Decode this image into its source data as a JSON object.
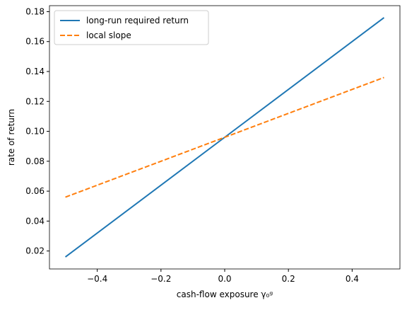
{
  "chart_data": {
    "type": "line",
    "xlabel": "cash-flow exposure γ₀ᵍ",
    "ylabel": "rate of return",
    "x": [
      -0.5,
      0,
      0.5
    ],
    "series": [
      {
        "name": "long-run required return",
        "color": "#1f77b4",
        "dash": false,
        "values": [
          0.016,
          0.096,
          0.176
        ]
      },
      {
        "name": "local slope",
        "color": "#ff7f0e",
        "dash": true,
        "values": [
          0.056,
          0.096,
          0.136
        ]
      }
    ],
    "xlim": [
      -0.55,
      0.55
    ],
    "xticks": [
      {
        "value": -0.4,
        "label": "−0.4"
      },
      {
        "value": -0.2,
        "label": "−0.2"
      },
      {
        "value": 0,
        "label": "0.0"
      },
      0.2,
      0.4
    ],
    "ylim": [
      0.008,
      0.184
    ],
    "yticks": [
      0.02,
      0.04,
      0.06,
      0.08,
      {
        "value": 0.1,
        "label": "0.10"
      },
      0.12,
      0.14,
      0.16,
      0.18
    ],
    "legend": "upper left"
  }
}
